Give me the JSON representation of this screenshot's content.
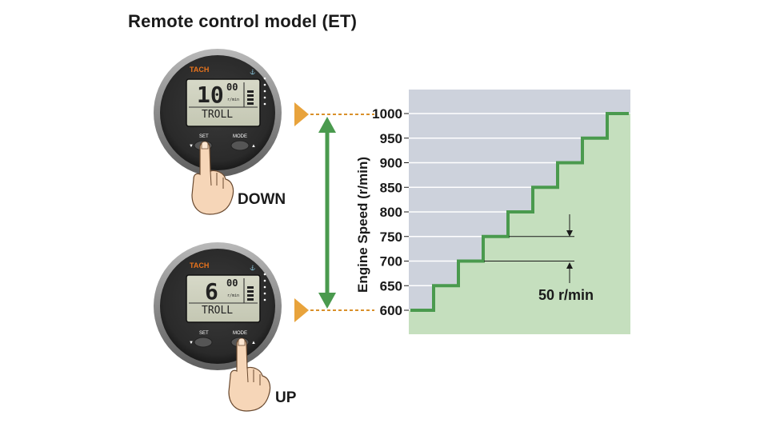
{
  "title": "Remote control model (ET)",
  "gauges": [
    {
      "id": "down",
      "brand": "TACH",
      "value_main": "10",
      "value_sup": "00",
      "unit": "r/min",
      "mode_text": "TROLL",
      "set_label": "SET",
      "mode_label": "MODE",
      "action_label": "DOWN",
      "pressed": "set"
    },
    {
      "id": "up",
      "brand": "TACH",
      "value_main": "6",
      "value_sup": "00",
      "unit": "r/min",
      "mode_text": "TROLL",
      "set_label": "SET",
      "mode_label": "MODE",
      "action_label": "UP",
      "pressed": "mode"
    }
  ],
  "colors": {
    "accent_orange": "#e8a33c",
    "step_green": "#4a9a4e",
    "fill_green": "#c5dfbe",
    "bg_grey": "#cdd2dc",
    "arrow_green": "#4a9a4e"
  },
  "chart_data": {
    "type": "line",
    "ylabel": "Engine Speed (r/min)",
    "xlabel": "",
    "ylim": [
      600,
      1000
    ],
    "yticks": [
      1000,
      950,
      900,
      850,
      800,
      750,
      700,
      650,
      600
    ],
    "step_levels": [
      600,
      650,
      700,
      750,
      800,
      850,
      900,
      950,
      1000
    ],
    "increment_label": "50 r/min",
    "grid": true
  }
}
